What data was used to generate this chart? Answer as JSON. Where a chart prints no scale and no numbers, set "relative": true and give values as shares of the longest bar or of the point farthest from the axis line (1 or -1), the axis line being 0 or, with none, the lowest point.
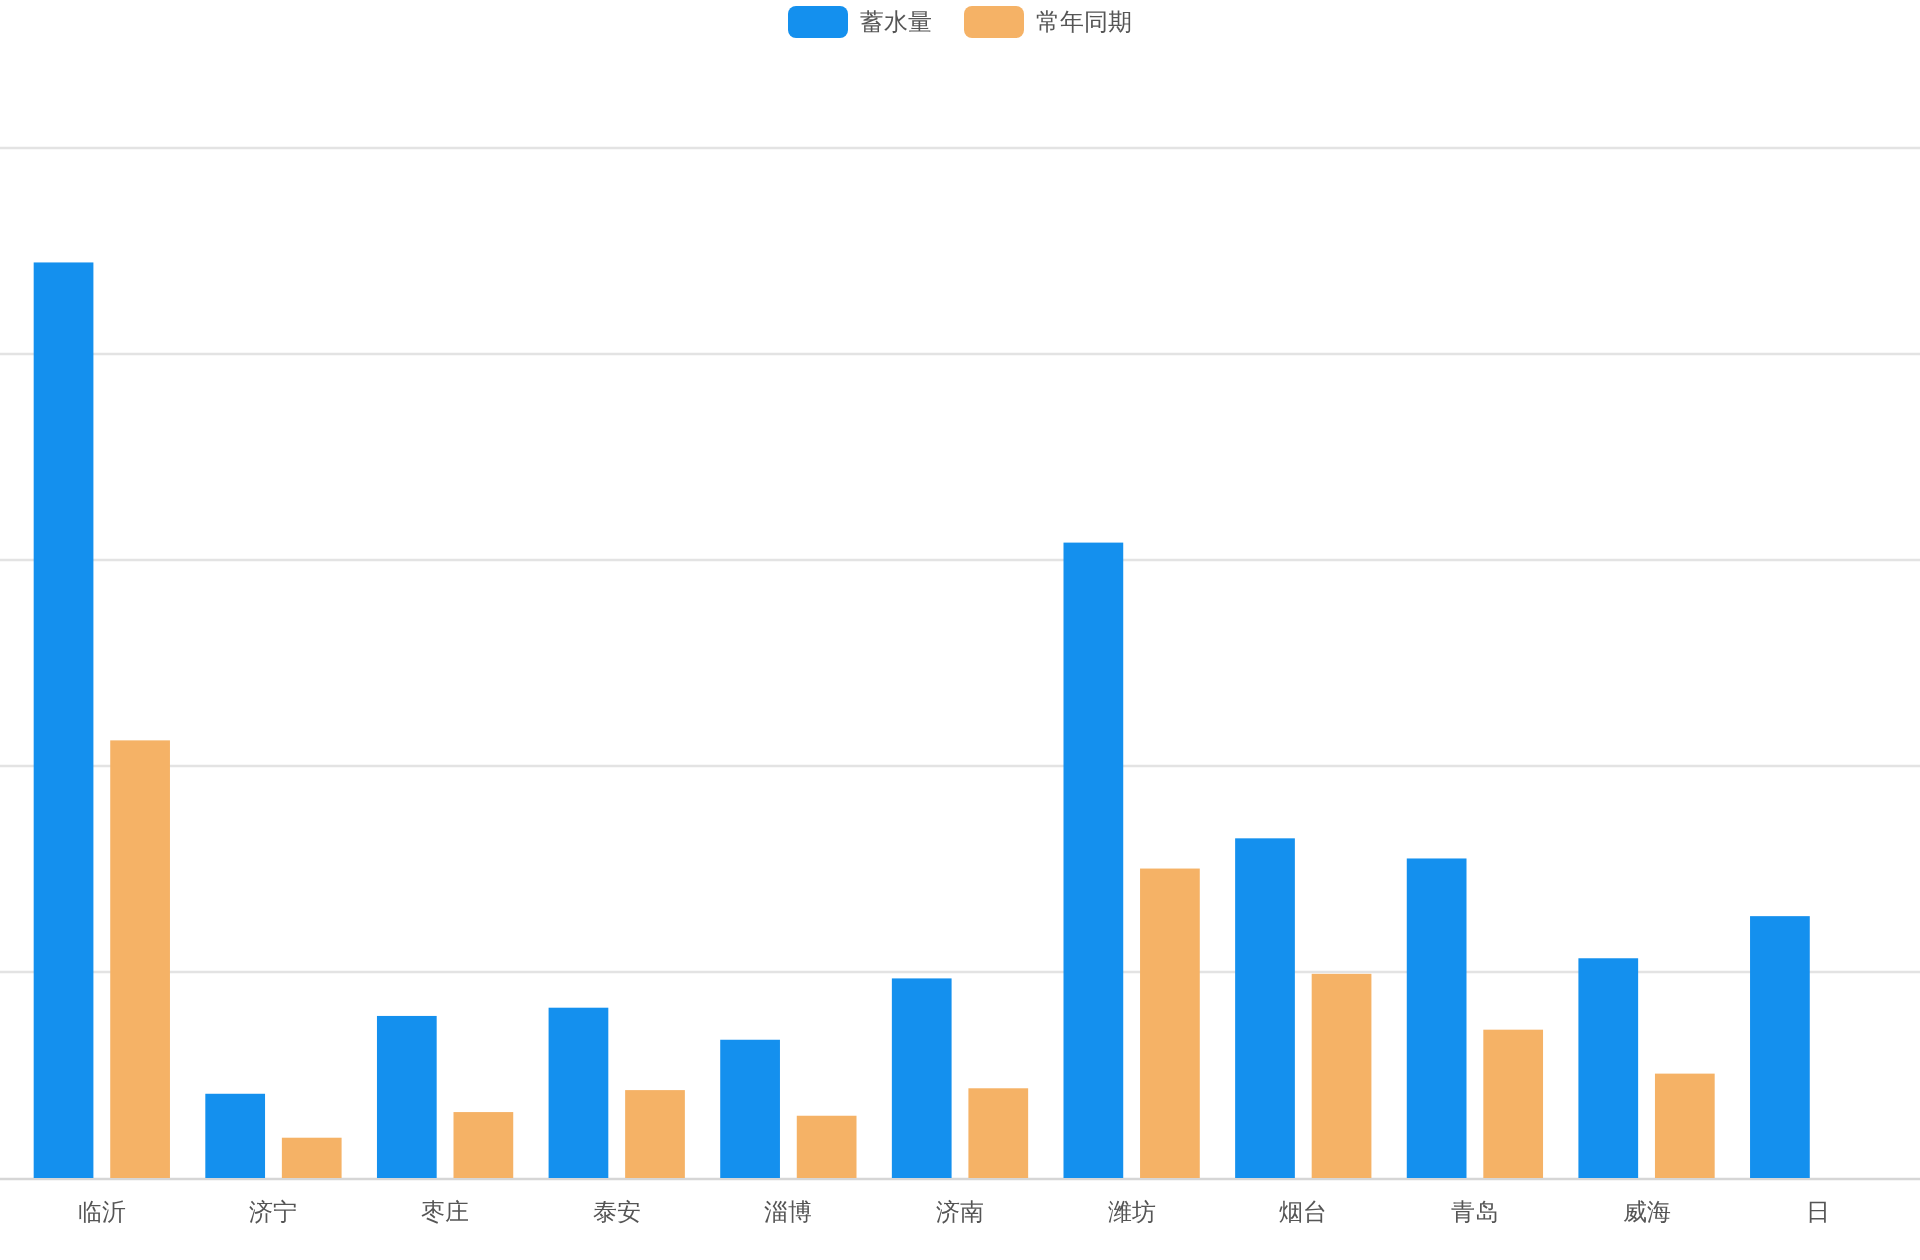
{
  "chart_data": {
    "type": "bar",
    "relative": true,
    "grid": "y",
    "legend": "top",
    "categories": [
      "临沂",
      "济宁",
      "枣庄",
      "泰安",
      "淄博",
      "济南",
      "潍坊",
      "烟台",
      "青岛",
      "威海",
      "日"
    ],
    "series": [
      {
        "name": "蓄水量",
        "color": "#1490ee",
        "values": [
          1.0,
          0.092,
          0.177,
          0.186,
          0.151,
          0.218,
          0.694,
          0.371,
          0.349,
          0.24,
          0.286
        ]
      },
      {
        "name": "常年同期",
        "color": "#f5b266",
        "values": [
          0.478,
          0.044,
          0.072,
          0.096,
          0.068,
          0.098,
          0.338,
          0.223,
          0.162,
          0.114,
          null
        ]
      }
    ]
  }
}
